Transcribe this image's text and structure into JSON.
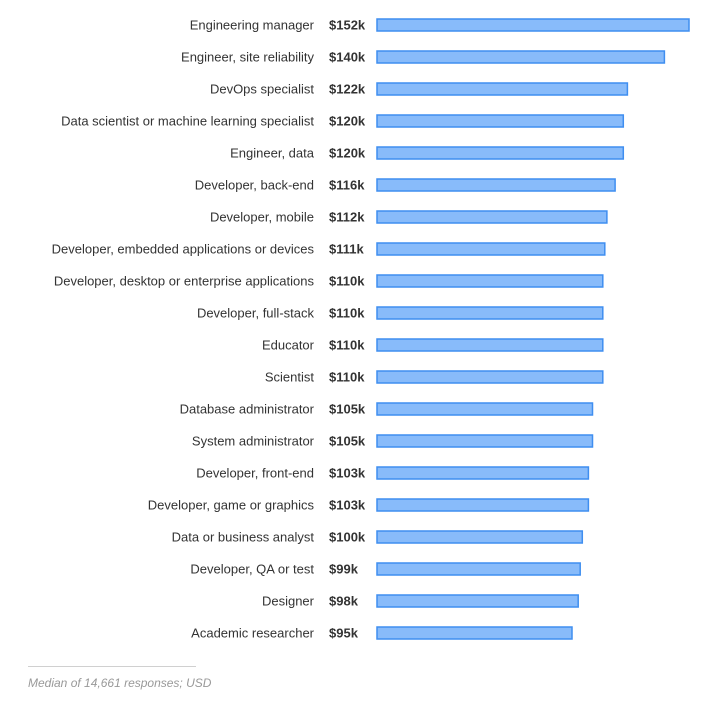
{
  "chart_data": {
    "type": "bar",
    "orientation": "horizontal",
    "categories": [
      "Engineering manager",
      "Engineer, site reliability",
      "DevOps specialist",
      "Data scientist or machine learning specialist",
      "Engineer, data",
      "Developer, back-end",
      "Developer, mobile",
      "Developer, embedded applications or devices",
      "Developer, desktop or enterprise applications",
      "Developer, full-stack",
      "Educator",
      "Scientist",
      "Database administrator",
      "System administrator",
      "Developer, front-end",
      "Developer, game or graphics",
      "Data or business analyst",
      "Developer, QA or test",
      "Designer",
      "Academic researcher"
    ],
    "values": [
      152,
      140,
      122,
      120,
      120,
      116,
      112,
      111,
      110,
      110,
      110,
      110,
      105,
      105,
      103,
      103,
      100,
      99,
      98,
      95
    ],
    "value_labels": [
      "$152k",
      "$140k",
      "$122k",
      "$120k",
      "$120k",
      "$116k",
      "$112k",
      "$111k",
      "$110k",
      "$110k",
      "$110k",
      "$110k",
      "$105k",
      "$105k",
      "$103k",
      "$103k",
      "$100k",
      "$99k",
      "$98k",
      "$95k"
    ],
    "xlim": [
      0,
      152
    ],
    "grid": false,
    "bar_color": "#88bbfa",
    "bar_border_color": "#3f8ef0"
  },
  "footnote": "Median of 14,661 responses; USD"
}
